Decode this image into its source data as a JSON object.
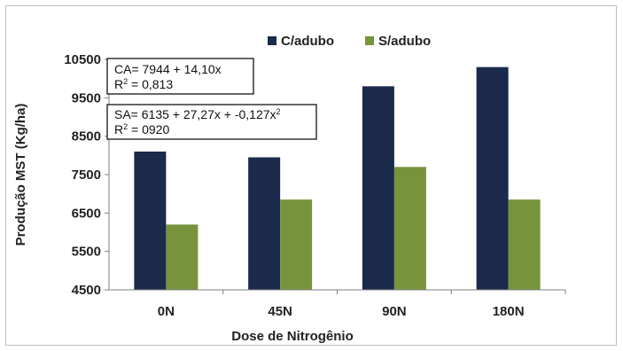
{
  "chart_data": {
    "type": "bar",
    "categories": [
      "0N",
      "45N",
      "90N",
      "180N"
    ],
    "series": [
      {
        "name": "C/adubo",
        "values": [
          8100,
          7950,
          9800,
          10300
        ]
      },
      {
        "name": "S/adubo",
        "values": [
          6200,
          6850,
          7700,
          6850
        ]
      }
    ],
    "xlabel": "Dose de Nitrogênio",
    "ylabel": "Produção MST (Kg/ha)",
    "ylim": [
      4500,
      10500
    ],
    "yticks": [
      "4500",
      "5500",
      "6500",
      "7500",
      "8500",
      "9500",
      "10500"
    ],
    "grid": false,
    "legend_position": "top",
    "colors": {
      "C/adubo": "#1b2a4a",
      "S/adubo": "#77933c"
    },
    "annotations": [
      {
        "series": "C/adubo",
        "equation": "CA= 7944 + 14,10x",
        "r2_prefix": "R",
        "r2_exp": "2",
        "r2_value": " = 0,813"
      },
      {
        "series": "S/adubo",
        "equation_prefix": "SA= 6135 + 27,27x + -0,127x",
        "equation_exp": "2",
        "r2_prefix": "R",
        "r2_exp": "2",
        "r2_value": " = 0920"
      }
    ]
  }
}
